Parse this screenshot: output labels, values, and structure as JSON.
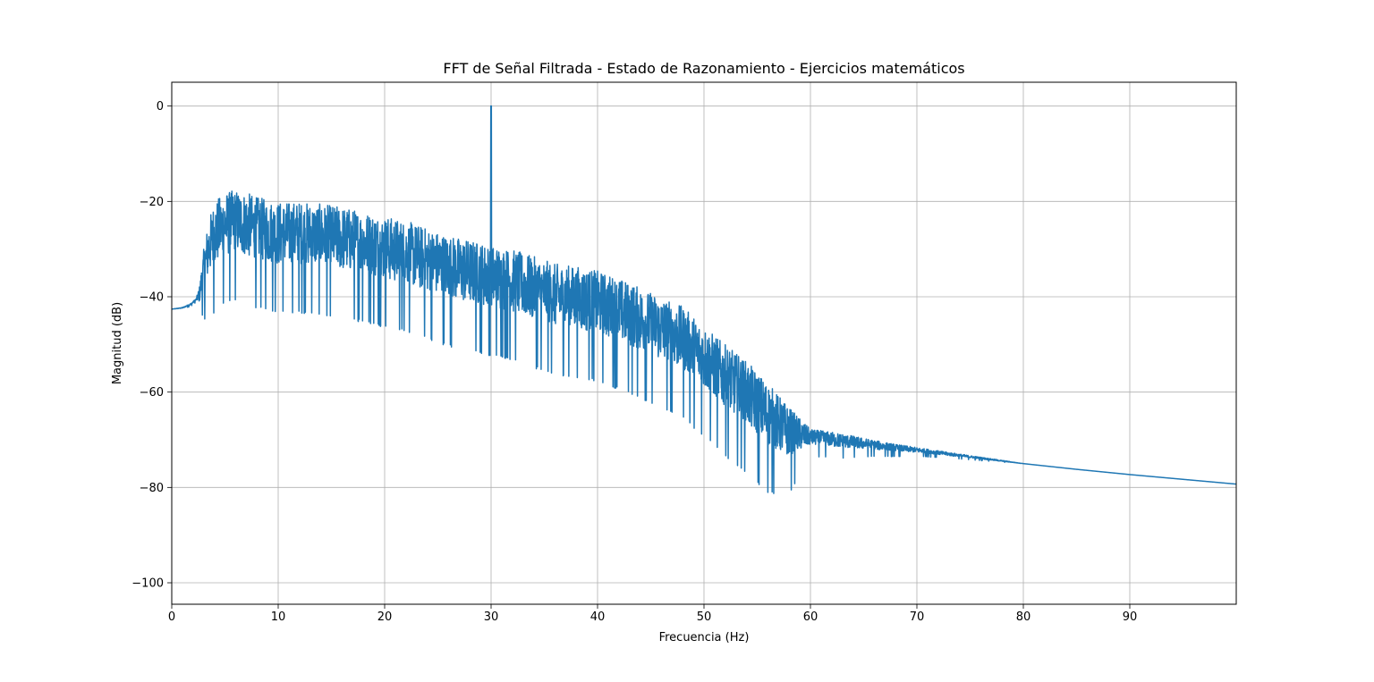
{
  "chart_data": {
    "type": "line",
    "title": "FFT de Señal Filtrada - Estado de Razonamiento - Ejercicios matemáticos",
    "xlabel": "Frecuencia (Hz)",
    "ylabel": "Magnitud (dB)",
    "xlim": [
      0,
      100
    ],
    "ylim": [
      -104.5,
      5
    ],
    "xticks": [
      0,
      10,
      20,
      30,
      40,
      50,
      60,
      70,
      80,
      90
    ],
    "xtick_labels": [
      "0",
      "10",
      "20",
      "30",
      "40",
      "50",
      "60",
      "70",
      "80",
      "90"
    ],
    "yticks": [
      0,
      -20,
      -40,
      -60,
      -80,
      -100
    ],
    "ytick_labels": [
      "0",
      "−20",
      "−40",
      "−60",
      "−80",
      "−100"
    ],
    "grid": true,
    "line_color": "#1f77b4",
    "series": [
      {
        "peak": {
          "x": 30,
          "y": 0
        },
        "envelope": [
          [
            0,
            -42.6
          ],
          [
            1,
            -42.3
          ],
          [
            1.8,
            -41.5
          ],
          [
            2.3,
            -40.5
          ],
          [
            2.6,
            -39
          ],
          [
            3,
            -33
          ],
          [
            3.5,
            -28
          ],
          [
            4,
            -25
          ],
          [
            5,
            -23
          ],
          [
            6,
            -22.5
          ],
          [
            7,
            -23
          ],
          [
            8,
            -24
          ],
          [
            10,
            -25
          ],
          [
            12,
            -25
          ],
          [
            14,
            -25.5
          ],
          [
            16,
            -26
          ],
          [
            18,
            -27
          ],
          [
            20,
            -28
          ],
          [
            22,
            -29
          ],
          [
            24,
            -30.5
          ],
          [
            26,
            -32
          ],
          [
            28,
            -33
          ],
          [
            30,
            -34
          ],
          [
            32,
            -35
          ],
          [
            34,
            -36.5
          ],
          [
            36,
            -38
          ],
          [
            38,
            -38.5
          ],
          [
            40,
            -39.5
          ],
          [
            42,
            -41
          ],
          [
            44,
            -43
          ],
          [
            46,
            -45
          ],
          [
            48,
            -47
          ],
          [
            50,
            -51
          ],
          [
            52,
            -55
          ],
          [
            54,
            -58.5
          ],
          [
            56,
            -63
          ],
          [
            58,
            -67
          ],
          [
            60,
            -69
          ],
          [
            62,
            -69.5
          ],
          [
            65,
            -70.5
          ],
          [
            68,
            -71.5
          ],
          [
            70,
            -72
          ],
          [
            75,
            -73.5
          ],
          [
            80,
            -75
          ],
          [
            85,
            -76.2
          ],
          [
            90,
            -77.3
          ],
          [
            95,
            -78.3
          ],
          [
            100,
            -79.3
          ]
        ],
        "noise_amplitude": [
          [
            0,
            0
          ],
          [
            2.3,
            0.3
          ],
          [
            2.7,
            3
          ],
          [
            3.2,
            7
          ],
          [
            4,
            9
          ],
          [
            10,
            9
          ],
          [
            20,
            9
          ],
          [
            30,
            9
          ],
          [
            40,
            9
          ],
          [
            50,
            9
          ],
          [
            56,
            9
          ],
          [
            58,
            7
          ],
          [
            60,
            2.2
          ],
          [
            63,
            2
          ],
          [
            66,
            1.3
          ],
          [
            70,
            0.7
          ],
          [
            74,
            0.4
          ],
          [
            78,
            0.15
          ],
          [
            80,
            0
          ]
        ]
      }
    ]
  }
}
